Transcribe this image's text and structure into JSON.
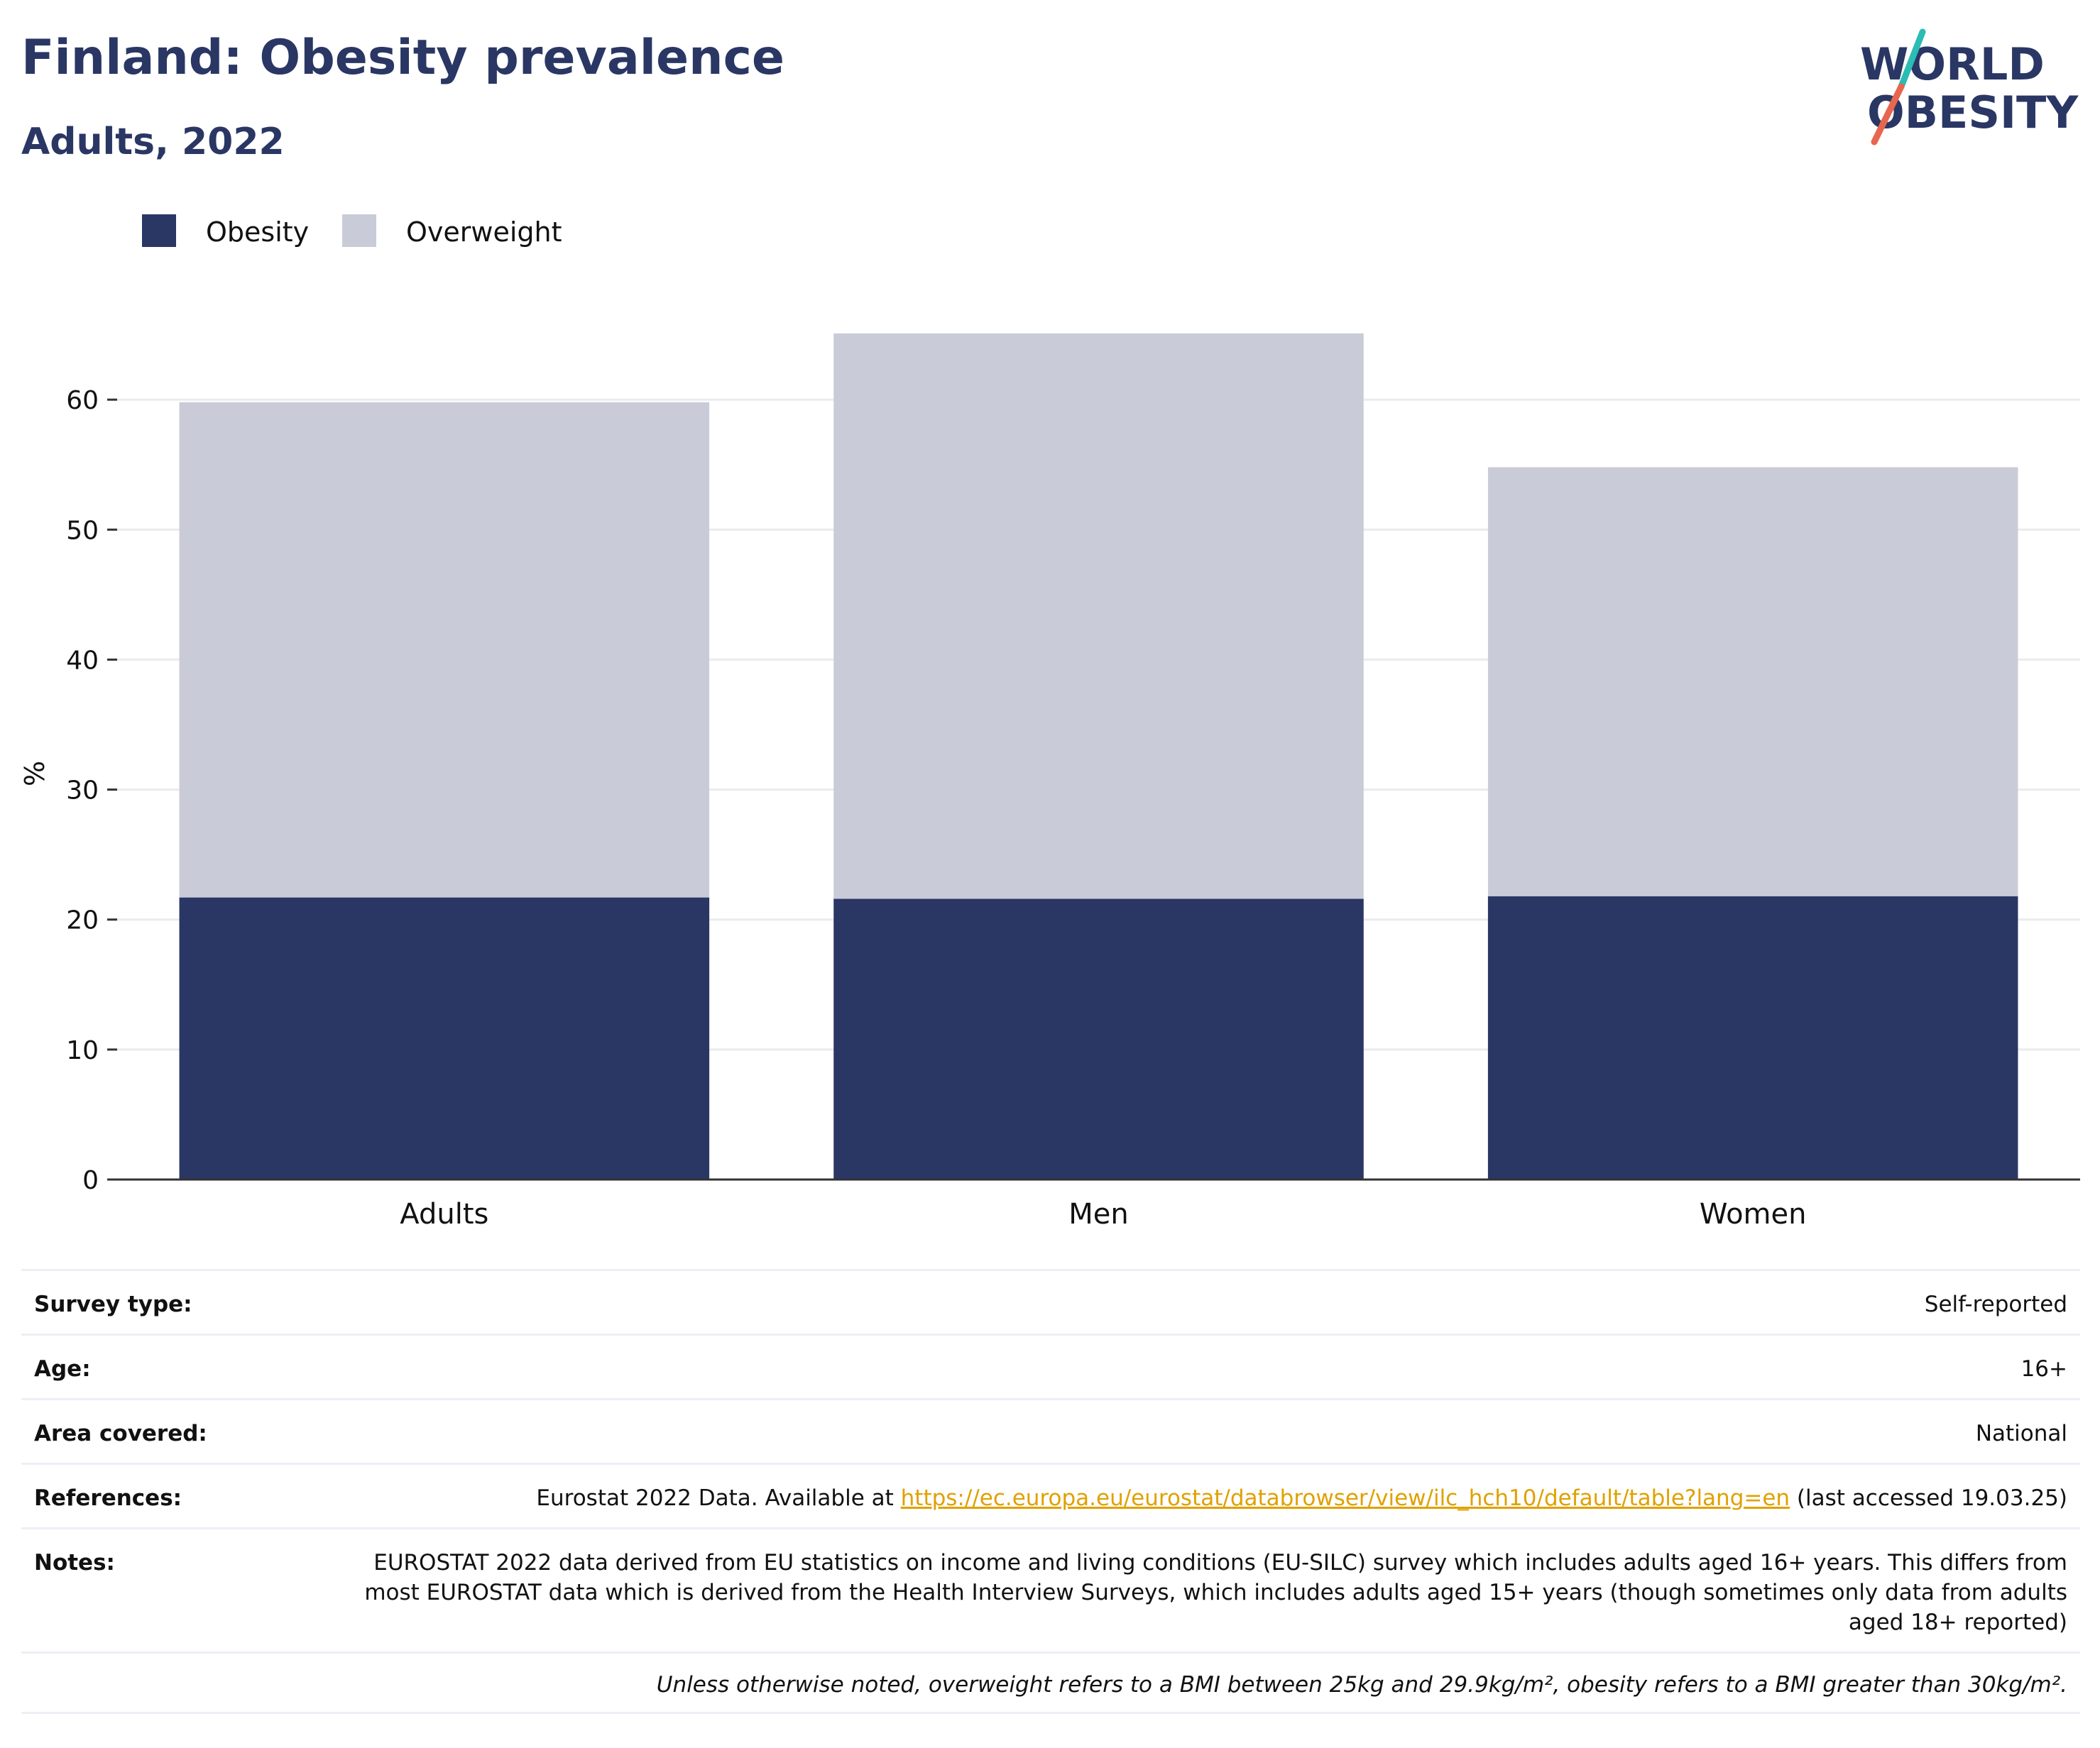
{
  "header": {
    "title": "Finland: Obesity prevalence",
    "subtitle": "Adults, 2022"
  },
  "logo": {
    "line1": "WORLD",
    "line2": "OBESITY",
    "colors": {
      "text": "#2a3764",
      "slash_top": "#2bbcb4",
      "slash_bottom": "#e8664f"
    }
  },
  "chart_data": {
    "type": "bar",
    "stacked": true,
    "categories": [
      "Adults",
      "Men",
      "Women"
    ],
    "series": [
      {
        "name": "Obesity",
        "color": "#2a3764",
        "values": [
          21.7,
          21.6,
          21.8
        ]
      },
      {
        "name": "Overweight",
        "color": "#c9ccd8",
        "values": [
          38.1,
          43.5,
          33.0
        ]
      }
    ],
    "ylabel": "%",
    "ylim": [
      0,
      70
    ],
    "yticks": [
      0,
      10,
      20,
      30,
      40,
      50,
      60
    ],
    "grid": true,
    "legend_position": "top-left"
  },
  "info": {
    "rows": [
      {
        "key": "Survey type:",
        "value": "Self-reported"
      },
      {
        "key": "Age:",
        "value": "16+"
      },
      {
        "key": "Area covered:",
        "value": "National"
      }
    ],
    "references": {
      "key": "References:",
      "prefix": "Eurostat 2022 Data. Available at ",
      "link": "https://ec.europa.eu/eurostat/databrowser/view/ilc_hch10/default/table?lang=en",
      "suffix": " (last accessed 19.03.25)"
    },
    "notes": {
      "key": "Notes:",
      "value": "EUROSTAT 2022 data derived from EU statistics on income and living conditions (EU-SILC) survey which includes adults aged 16+ years. This differs from most EUROSTAT data which is derived from the Health Interview Surveys, which includes adults aged 15+ years (though sometimes only data from adults aged 18+ reported)"
    },
    "footnote": "Unless otherwise noted, overweight refers to a BMI between 25kg and 29.9kg/m², obesity refers to a BMI greater than 30kg/m²."
  }
}
